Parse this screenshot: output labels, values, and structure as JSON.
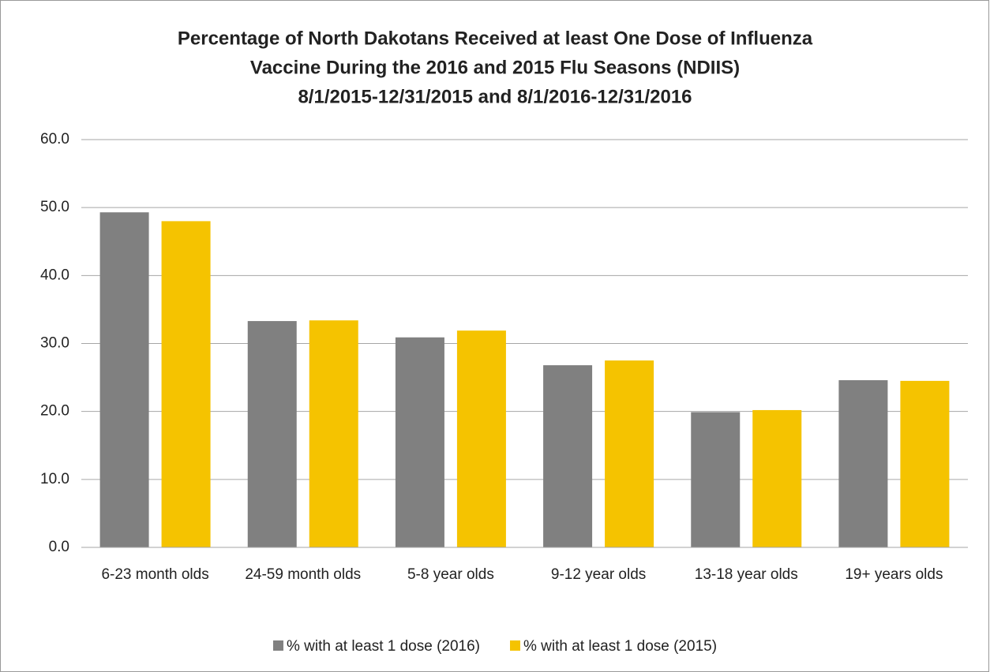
{
  "chart_data": {
    "type": "bar",
    "title": [
      "Percentage of North Dakotans Received at least One Dose of Influenza",
      "Vaccine During the 2016 and 2015 Flu Seasons (NDIIS)",
      "8/1/2015-12/31/2015 and 8/1/2016-12/31/2016"
    ],
    "categories": [
      "6-23 month olds",
      "24-59 month olds",
      "5-8 year olds",
      "9-12 year olds",
      "13-18 year olds",
      "19+ years olds"
    ],
    "series": [
      {
        "name": "% with at least 1 dose (2016)",
        "color": "#808080",
        "values": [
          49.3,
          33.3,
          30.9,
          26.8,
          19.9,
          24.6
        ]
      },
      {
        "name": "% with at least 1 dose (2015)",
        "color": "#f5c300",
        "values": [
          48.0,
          33.4,
          31.9,
          27.5,
          20.2,
          24.5
        ]
      }
    ],
    "ylim": [
      0,
      60
    ],
    "yticks": [
      {
        "value": 0,
        "label": "0.0"
      },
      {
        "value": 10,
        "label": "10.0"
      },
      {
        "value": 20,
        "label": "20.0"
      },
      {
        "value": 30,
        "label": "30.0"
      },
      {
        "value": 40,
        "label": "40.0"
      },
      {
        "value": 50,
        "label": "50.0"
      },
      {
        "value": 60,
        "label": "60.0"
      }
    ],
    "grid": true,
    "legend": "bottom"
  }
}
